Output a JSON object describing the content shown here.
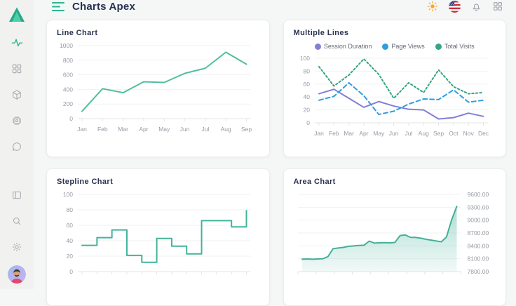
{
  "app": {
    "title": "Charts Apex"
  },
  "colors": {
    "accent": "#2bb694",
    "chart_teal": "#4fbf9f",
    "series_purple": "#837fd8",
    "series_blue": "#2f9de0",
    "series_green": "#35a585",
    "sun": "#f3a72e"
  },
  "sidebar": {
    "items": [
      {
        "icon": "activity-icon",
        "active": true
      },
      {
        "icon": "widgets-icon",
        "active": false
      },
      {
        "icon": "package-icon",
        "active": false
      },
      {
        "icon": "chip-icon",
        "active": false
      },
      {
        "icon": "chat-icon",
        "active": false
      }
    ],
    "footer_items": [
      {
        "icon": "docs-panel-icon"
      },
      {
        "icon": "search-icon"
      },
      {
        "icon": "settings-icon"
      }
    ],
    "avatar": "user-avatar"
  },
  "header": {
    "icons": [
      "sun-icon",
      "us-flag-icon",
      "bell-icon",
      "apps-grid-icon"
    ]
  },
  "chart_data": [
    {
      "type": "line",
      "title": "Line Chart",
      "categories": [
        "Jan",
        "Feb",
        "Mar",
        "Apr",
        "May",
        "Jun",
        "Jul",
        "Aug",
        "Sep"
      ],
      "ylim": [
        0,
        1000
      ],
      "y_ticks": {
        "values": [
          0,
          200,
          400,
          600,
          800,
          1000
        ],
        "labels": [
          "0",
          "200",
          "400",
          "600",
          "800",
          "1000"
        ]
      },
      "y_side": "left",
      "show_x_labels": true,
      "grid": true,
      "series": [
        {
          "name": "",
          "color": "#4fbf9f",
          "style": "solid",
          "values": [
            100,
            410,
            355,
            505,
            495,
            620,
            690,
            910,
            745
          ]
        }
      ]
    },
    {
      "type": "line",
      "title": "Multiple Lines",
      "show_legend": true,
      "legend_position": "top",
      "categories": [
        "Jan",
        "Feb",
        "Mar",
        "Apr",
        "May",
        "Jun",
        "Jul",
        "Aug",
        "Sep",
        "Oct",
        "Nov",
        "Dec"
      ],
      "ylim": [
        0,
        100
      ],
      "y_ticks": {
        "values": [
          0,
          20,
          40,
          60,
          80,
          100
        ],
        "labels": [
          "0",
          "20",
          "40",
          "60",
          "80",
          "100"
        ]
      },
      "y_side": "left",
      "show_x_labels": true,
      "grid": true,
      "series": [
        {
          "name": "Session Duration",
          "color": "#837fd8",
          "style": "solid",
          "values": [
            45,
            52,
            38,
            24,
            33,
            26,
            21,
            20,
            6,
            8,
            15,
            10
          ]
        },
        {
          "name": "Page Views",
          "color": "#2f9de0",
          "style": "dash",
          "values": [
            35,
            41,
            62,
            42,
            13,
            18,
            29,
            37,
            36,
            51,
            32,
            35
          ]
        },
        {
          "name": "Total Visits",
          "color": "#35a585",
          "style": "dot",
          "values": [
            87,
            57,
            74,
            99,
            75,
            38,
            62,
            47,
            82,
            56,
            45,
            47
          ]
        }
      ]
    },
    {
      "type": "line",
      "title": "Stepline Chart",
      "step": true,
      "categories": [],
      "ylim": [
        0,
        100
      ],
      "y_ticks": {
        "values": [
          0,
          20,
          40,
          60,
          80,
          100
        ],
        "labels": [
          "0",
          "20",
          "40",
          "60",
          "80",
          "100"
        ]
      },
      "y_side": "left",
      "show_x_labels": false,
      "x_tick_count": 12,
      "grid": true,
      "series": [
        {
          "name": "",
          "color": "#42b39b",
          "style": "solid",
          "values": [
            34,
            44,
            54,
            21,
            12,
            43,
            33,
            23,
            66,
            66,
            58,
            79
          ]
        }
      ]
    },
    {
      "type": "area",
      "title": "Area Chart",
      "categories": [],
      "ylim": [
        7800,
        9600
      ],
      "y_ticks": {
        "values": [
          7800,
          8100,
          8400,
          8700,
          9000,
          9300,
          9600
        ],
        "labels": [
          "7800.00",
          "8100.00",
          "8400.00",
          "8700.00",
          "9000.00",
          "9300.00",
          "9600.00"
        ]
      },
      "y_side": "right",
      "show_x_labels": false,
      "x_tick_count": 10,
      "grid": true,
      "series": [
        {
          "name": "",
          "color": "#41b097",
          "style": "solid",
          "values": [
            8090,
            8095,
            8088,
            8095,
            8100,
            8150,
            8335,
            8350,
            8365,
            8390,
            8400,
            8410,
            8415,
            8510,
            8465,
            8470,
            8475,
            8470,
            8480,
            8640,
            8655,
            8600,
            8598,
            8580,
            8555,
            8535,
            8515,
            8495,
            8605,
            9005,
            9320
          ]
        }
      ]
    }
  ]
}
